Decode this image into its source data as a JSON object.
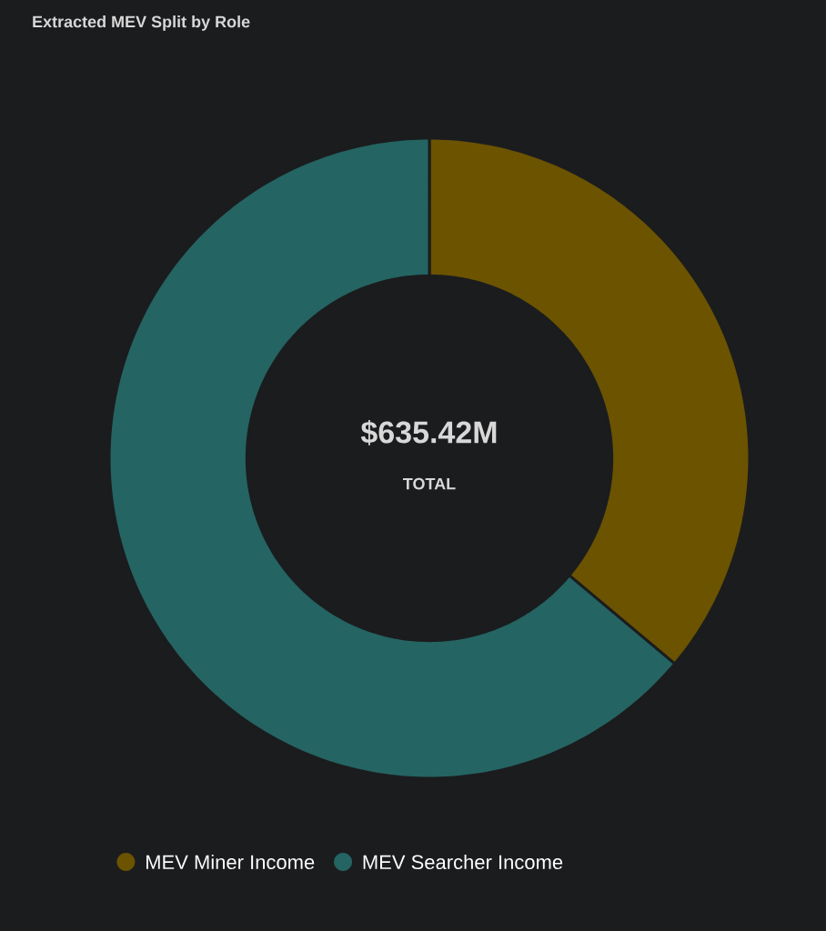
{
  "chart_data": {
    "type": "donut",
    "title": "Extracted MEV Split by Role",
    "categories": [
      "MEV Miner Income",
      "MEV Searcher Income"
    ],
    "values": [
      36.1,
      63.9
    ],
    "colors": [
      "#6b5300",
      "#246462"
    ],
    "annotations": [
      "$635.42M",
      "TOTAL"
    ],
    "legend": "bottom"
  }
}
